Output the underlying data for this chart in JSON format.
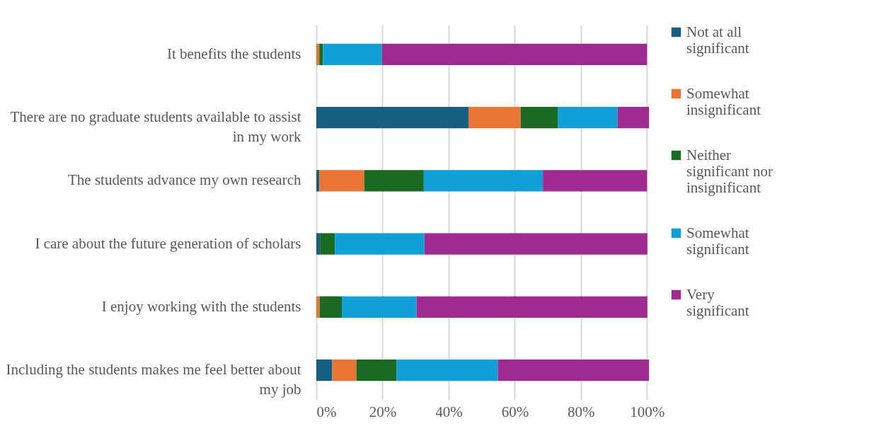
{
  "chart_data": {
    "type": "bar",
    "orientation": "horizontal",
    "stacked": true,
    "categories": [
      "It benefits the students",
      "There are no graduate students available to assist in my work",
      "The students advance my own research",
      "I care about the future generation of scholars",
      "I enjoy working with the students",
      "Including the students makes me feel better about my job"
    ],
    "series": [
      {
        "name": "Not at all significant",
        "color": "#175e83",
        "values": [
          0,
          46.0,
          0.9,
          1.1,
          0,
          4.8
        ]
      },
      {
        "name": "Somewhat insignificant",
        "color": "#e97434",
        "values": [
          0.9,
          15.8,
          13.6,
          0,
          1.0,
          7.3
        ]
      },
      {
        "name": "Neither significant nor insignificant",
        "color": "#1b6a23",
        "values": [
          1.1,
          11.2,
          18.0,
          4.5,
          6.7,
          12.2
        ]
      },
      {
        "name": "Somewhat significant",
        "color": "#109fd6",
        "values": [
          17.8,
          18.1,
          36.0,
          27.1,
          22.6,
          30.6
        ]
      },
      {
        "name": "Very significant",
        "color": "#9e2b90",
        "values": [
          80.2,
          9.5,
          31.5,
          67.4,
          69.8,
          45.7
        ]
      }
    ],
    "xlim": [
      0,
      101
    ],
    "xticks": [
      {
        "value": 0,
        "label": "0%"
      },
      {
        "value": 20,
        "label": "20%"
      },
      {
        "value": 40,
        "label": "40%"
      },
      {
        "value": 60,
        "label": "60%"
      },
      {
        "value": 80,
        "label": "80%"
      },
      {
        "value": 100,
        "label": "100%"
      }
    ],
    "grid": "x",
    "legend": "right"
  }
}
